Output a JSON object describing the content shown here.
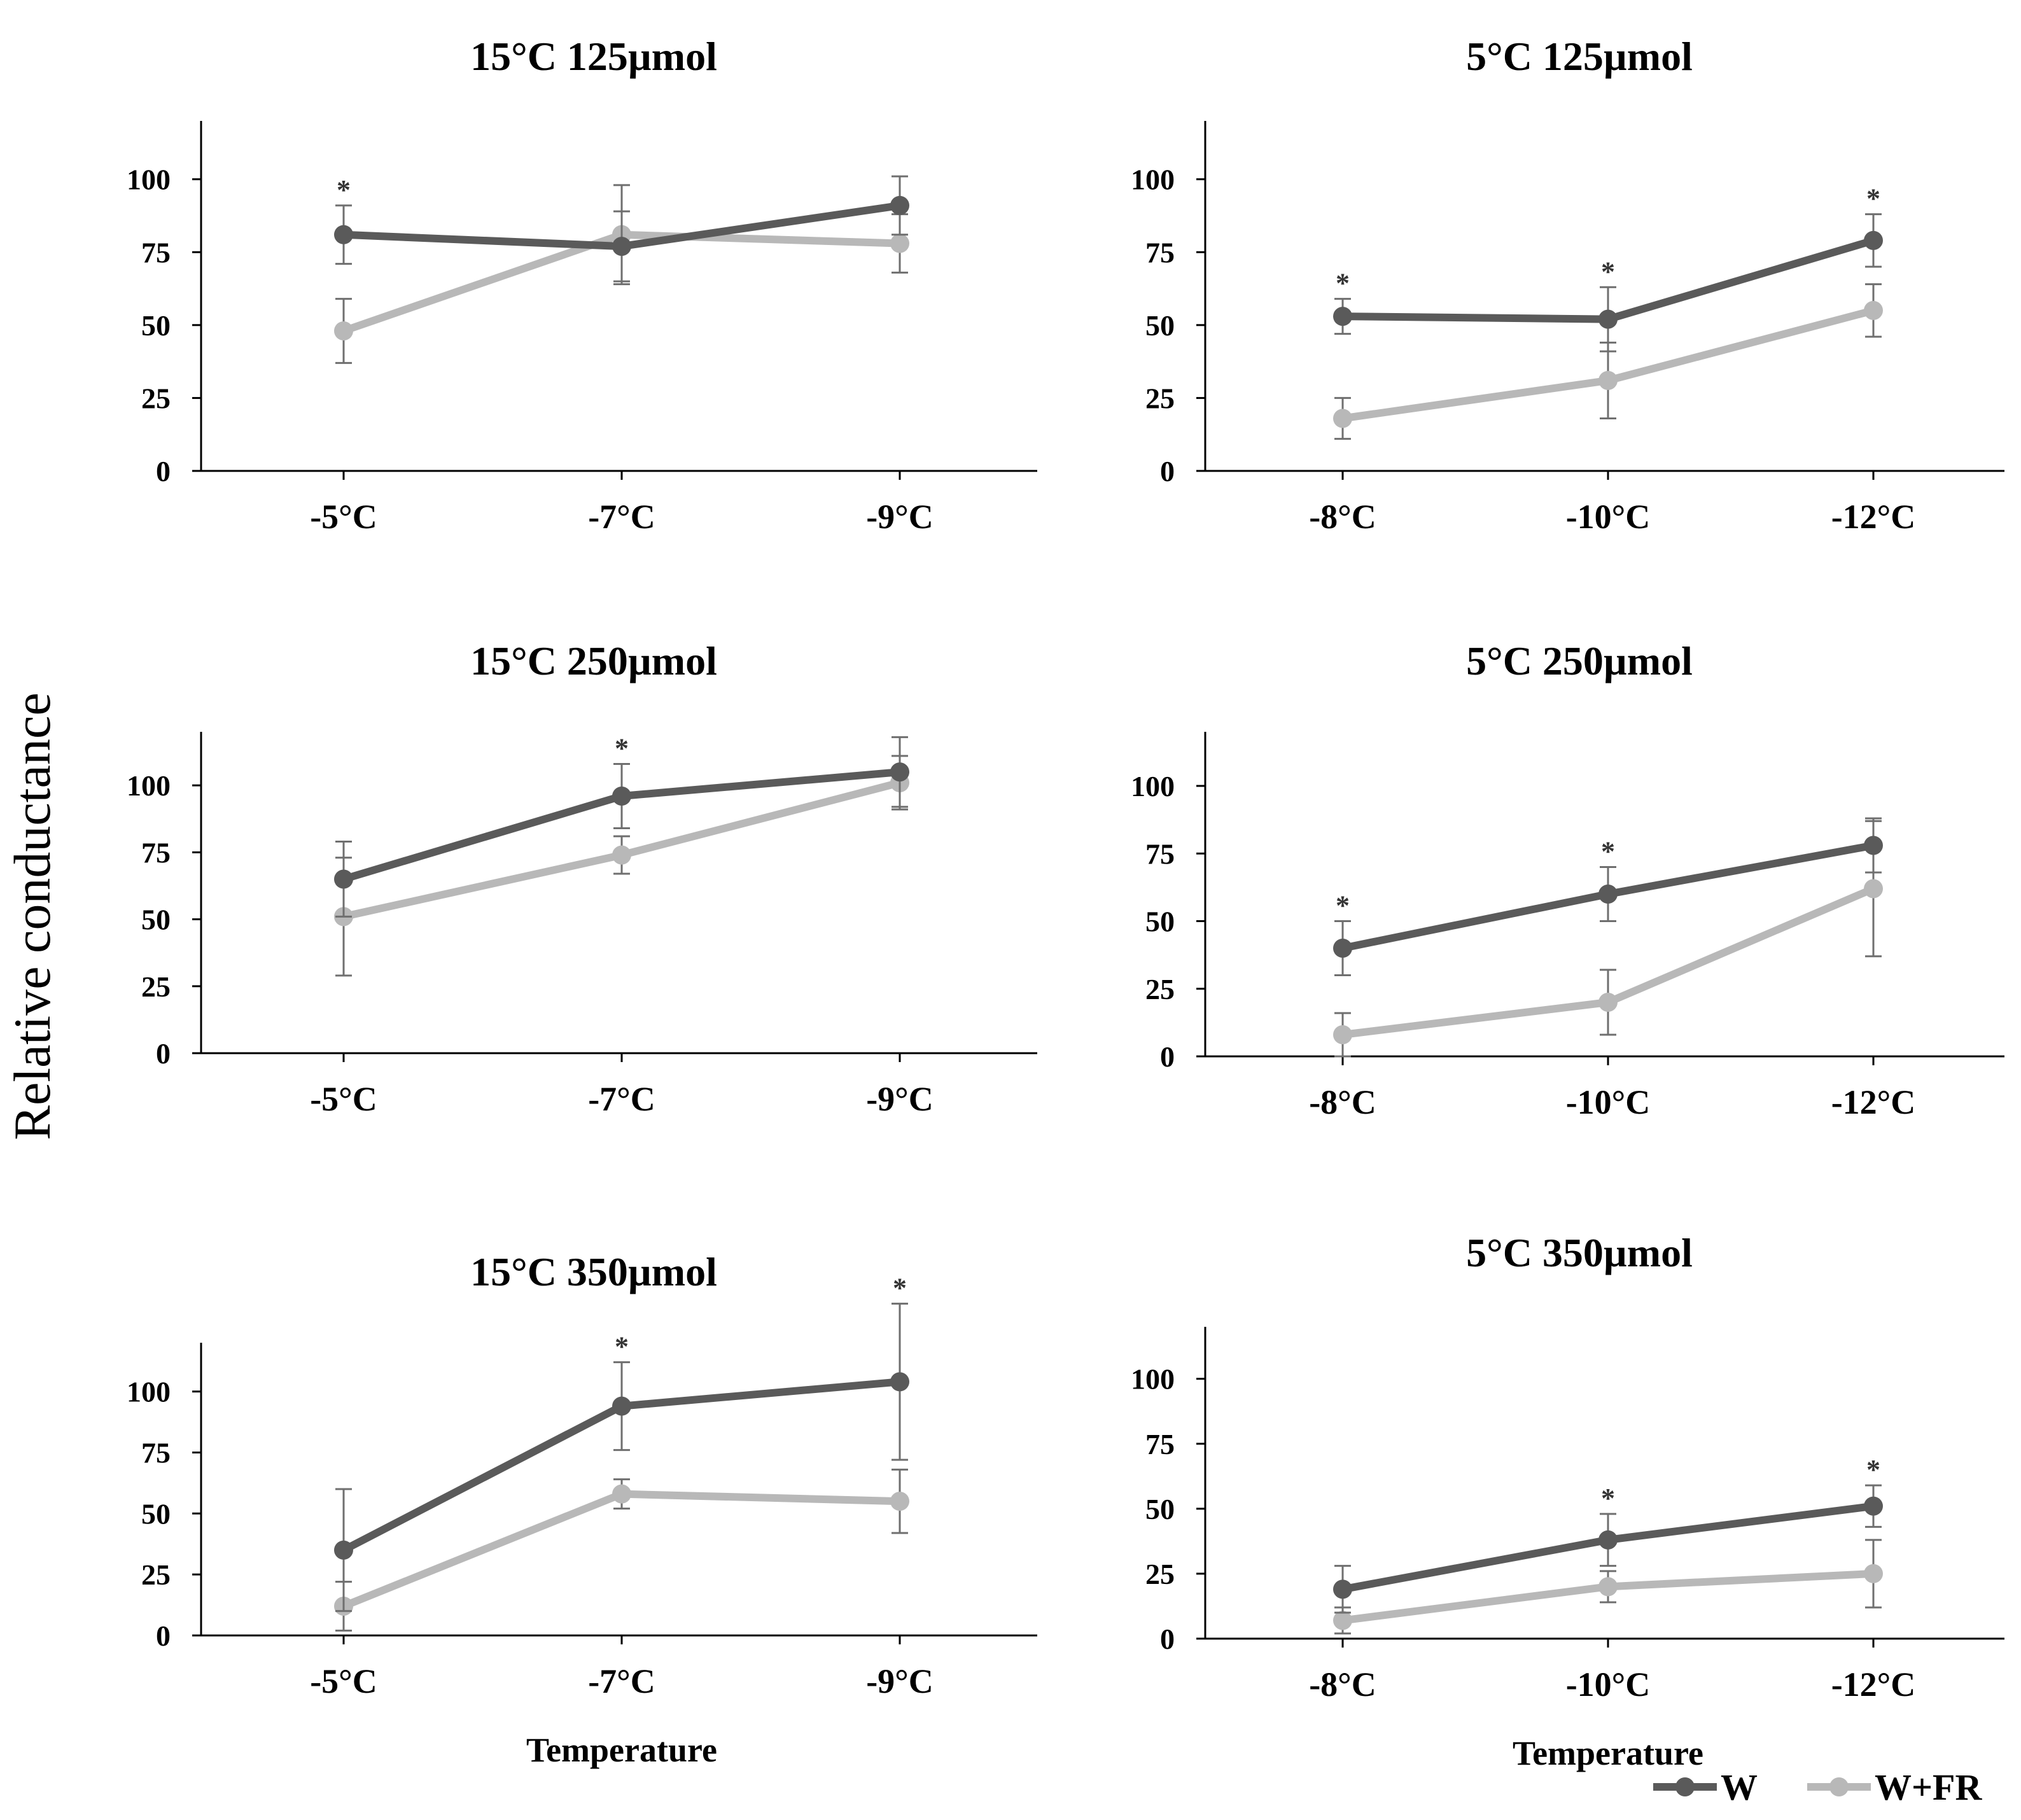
{
  "figure": {
    "ylabel": "Relative conductance",
    "legend": [
      {
        "label": "W",
        "color": "#5a5a5a"
      },
      {
        "label": "W+FR",
        "color": "#b8b8b8"
      }
    ],
    "significance_marker": "*"
  },
  "chart_data": [
    {
      "type": "line",
      "title": "15°C 125µmol",
      "xlabel": "",
      "categories": [
        "-5°C",
        "-7°C",
        "-9°C"
      ],
      "ylim": [
        0,
        120
      ],
      "yticks": [
        0,
        25,
        50,
        75,
        100
      ],
      "series": [
        {
          "name": "W",
          "values": [
            81,
            77,
            91
          ],
          "errors": [
            10,
            12,
            10
          ]
        },
        {
          "name": "W+FR",
          "values": [
            48,
            81,
            78
          ],
          "errors": [
            11,
            17,
            10
          ]
        }
      ],
      "significant": [
        true,
        false,
        false
      ]
    },
    {
      "type": "line",
      "title": "5°C 125µmol",
      "xlabel": "",
      "categories": [
        "-8°C",
        "-10°C",
        "-12°C"
      ],
      "ylim": [
        0,
        120
      ],
      "yticks": [
        0,
        25,
        50,
        75,
        100
      ],
      "series": [
        {
          "name": "W",
          "values": [
            53,
            52,
            79
          ],
          "errors": [
            6,
            11,
            9
          ]
        },
        {
          "name": "W+FR",
          "values": [
            18,
            31,
            55
          ],
          "errors": [
            7,
            13,
            9
          ]
        }
      ],
      "significant": [
        true,
        true,
        true
      ]
    },
    {
      "type": "line",
      "title": "15°C 250µmol",
      "xlabel": "",
      "categories": [
        "-5°C",
        "-7°C",
        "-9°C"
      ],
      "ylim": [
        0,
        120
      ],
      "yticks": [
        0,
        25,
        50,
        75,
        100
      ],
      "series": [
        {
          "name": "W",
          "values": [
            65,
            96,
            105
          ],
          "errors": [
            14,
            12,
            13
          ]
        },
        {
          "name": "W+FR",
          "values": [
            51,
            74,
            101
          ],
          "errors": [
            22,
            7,
            10
          ]
        }
      ],
      "significant": [
        false,
        true,
        false
      ]
    },
    {
      "type": "line",
      "title": "5°C 250µmol",
      "xlabel": "",
      "categories": [
        "-8°C",
        "-10°C",
        "-12°C"
      ],
      "ylim": [
        0,
        120
      ],
      "yticks": [
        0,
        25,
        50,
        75,
        100
      ],
      "series": [
        {
          "name": "W",
          "values": [
            40,
            60,
            78
          ],
          "errors": [
            10,
            10,
            10
          ]
        },
        {
          "name": "W+FR",
          "values": [
            8,
            20,
            62
          ],
          "errors": [
            8,
            12,
            25
          ]
        }
      ],
      "significant": [
        true,
        true,
        false
      ]
    },
    {
      "type": "line",
      "title": "15°C 350µmol",
      "xlabel": "Temperature",
      "categories": [
        "-5°C",
        "-7°C",
        "-9°C"
      ],
      "ylim": [
        0,
        120
      ],
      "yticks": [
        0,
        25,
        50,
        75,
        100
      ],
      "series": [
        {
          "name": "W",
          "values": [
            35,
            94,
            104
          ],
          "errors": [
            25,
            18,
            32
          ]
        },
        {
          "name": "W+FR",
          "values": [
            12,
            58,
            55
          ],
          "errors": [
            10,
            6,
            13
          ]
        }
      ],
      "significant": [
        false,
        true,
        true
      ]
    },
    {
      "type": "line",
      "title": "5°C 350µmol",
      "xlabel": "Temperature",
      "categories": [
        "-8°C",
        "-10°C",
        "-12°C"
      ],
      "ylim": [
        0,
        120
      ],
      "yticks": [
        0,
        25,
        50,
        75,
        100
      ],
      "series": [
        {
          "name": "W",
          "values": [
            19,
            38,
            51
          ],
          "errors": [
            9,
            10,
            8
          ]
        },
        {
          "name": "W+FR",
          "values": [
            7,
            20,
            25
          ],
          "errors": [
            5,
            6,
            13
          ]
        }
      ],
      "significant": [
        false,
        true,
        true
      ]
    }
  ]
}
